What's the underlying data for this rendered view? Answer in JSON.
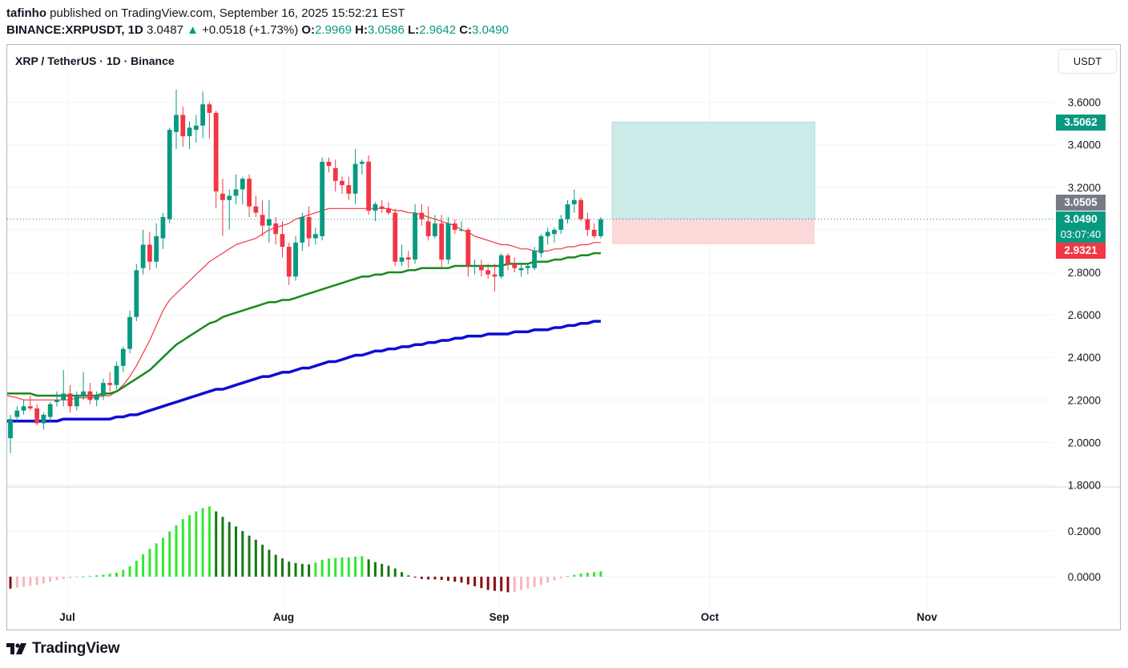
{
  "header": {
    "author": "tafinho",
    "published": "published on TradingView.com, September 16, 2025 15:52:21 EST",
    "symbol": "BINANCE:XRPUSDT, 1D",
    "last": "3.0487",
    "arrow": "▲",
    "change": "+0.0518 (+1.73%)",
    "o_label": "O:",
    "o": "2.9969",
    "h_label": "H:",
    "h": "3.0586",
    "l_label": "L:",
    "l": "2.9642",
    "c_label": "C:",
    "c": "3.0490"
  },
  "legend": "XRP / TetherUS · 1D · Binance",
  "currency_button": "USDT",
  "price_labels": {
    "target": "3.5062",
    "entry": "3.0505",
    "last": "3.0490",
    "countdown": "03:07:40",
    "stop": "2.9321"
  },
  "brand": "TradingView",
  "colors": {
    "up": "#089981",
    "down": "#f23645",
    "ema_fast": "#f23645",
    "ema_mid": "#1b8a1b",
    "ema_slow": "#0d0dd6",
    "target_zone": "#cbeae8",
    "stop_zone": "#fdd8d8",
    "hist_green_bright": "#32e832",
    "hist_green_dark": "#137a13",
    "hist_red_light": "#f7b7bb",
    "hist_red_dark": "#880e0e"
  },
  "chart_data": [
    {
      "type": "candlestick",
      "title": "XRP / TetherUS · 1D · Binance",
      "ylim": [
        1.8,
        3.8
      ],
      "y_ticks": [
        "3.6000",
        "3.4000",
        "3.2000",
        "3.0000",
        "2.8000",
        "2.6000",
        "2.4000",
        "2.2000",
        "2.0000",
        "1.8000"
      ],
      "x_ticks": [
        "Jul",
        "Aug",
        "Sep",
        "Oct",
        "Nov"
      ],
      "grid": true,
      "candles": [
        [
          2.02,
          2.13,
          1.95,
          2.11
        ],
        [
          2.12,
          2.17,
          2.1,
          2.15
        ],
        [
          2.15,
          2.2,
          2.13,
          2.17
        ],
        [
          2.17,
          2.22,
          2.15,
          2.16
        ],
        [
          2.16,
          2.18,
          2.08,
          2.09
        ],
        [
          2.09,
          2.14,
          2.06,
          2.13
        ],
        [
          2.12,
          2.19,
          2.1,
          2.18
        ],
        [
          2.19,
          2.24,
          2.17,
          2.2
        ],
        [
          2.2,
          2.34,
          2.17,
          2.23
        ],
        [
          2.23,
          2.27,
          2.14,
          2.17
        ],
        [
          2.17,
          2.24,
          2.15,
          2.22
        ],
        [
          2.22,
          2.33,
          2.2,
          2.24
        ],
        [
          2.24,
          2.28,
          2.18,
          2.2
        ],
        [
          2.2,
          2.24,
          2.17,
          2.22
        ],
        [
          2.22,
          2.3,
          2.2,
          2.28
        ],
        [
          2.28,
          2.33,
          2.24,
          2.27
        ],
        [
          2.27,
          2.38,
          2.25,
          2.36
        ],
        [
          2.36,
          2.45,
          2.33,
          2.44
        ],
        [
          2.44,
          2.62,
          2.42,
          2.59
        ],
        [
          2.59,
          2.84,
          2.57,
          2.81
        ],
        [
          2.82,
          3.0,
          2.79,
          2.93
        ],
        [
          2.93,
          2.99,
          2.81,
          2.85
        ],
        [
          2.85,
          3.03,
          2.82,
          2.97
        ],
        [
          2.96,
          3.08,
          2.91,
          3.06
        ],
        [
          3.05,
          3.48,
          3.03,
          3.47
        ],
        [
          3.46,
          3.66,
          3.38,
          3.54
        ],
        [
          3.54,
          3.58,
          3.39,
          3.44
        ],
        [
          3.44,
          3.51,
          3.38,
          3.48
        ],
        [
          3.47,
          3.54,
          3.41,
          3.49
        ],
        [
          3.49,
          3.65,
          3.43,
          3.59
        ],
        [
          3.59,
          3.6,
          3.43,
          3.55
        ],
        [
          3.55,
          3.56,
          3.1,
          3.18
        ],
        [
          3.17,
          3.24,
          2.97,
          3.14
        ],
        [
          3.14,
          3.19,
          3.0,
          3.16
        ],
        [
          3.16,
          3.26,
          3.12,
          3.19
        ],
        [
          3.19,
          3.25,
          3.12,
          3.24
        ],
        [
          3.24,
          3.26,
          3.06,
          3.11
        ],
        [
          3.11,
          3.16,
          3.06,
          3.08
        ],
        [
          3.07,
          3.14,
          2.97,
          3.02
        ],
        [
          3.02,
          3.14,
          2.94,
          3.05
        ],
        [
          3.03,
          3.06,
          2.93,
          2.98
        ],
        [
          2.98,
          3.04,
          2.87,
          2.92
        ],
        [
          2.92,
          2.94,
          2.74,
          2.78
        ],
        [
          2.78,
          2.97,
          2.76,
          2.94
        ],
        [
          2.94,
          3.08,
          2.9,
          3.06
        ],
        [
          3.06,
          3.11,
          2.92,
          2.96
        ],
        [
          2.96,
          3.01,
          2.93,
          2.98
        ],
        [
          2.97,
          3.34,
          2.95,
          3.32
        ],
        [
          3.32,
          3.34,
          3.27,
          3.3
        ],
        [
          3.29,
          3.33,
          3.18,
          3.23
        ],
        [
          3.23,
          3.25,
          3.17,
          3.21
        ],
        [
          3.21,
          3.25,
          3.14,
          3.17
        ],
        [
          3.17,
          3.38,
          3.12,
          3.31
        ],
        [
          3.31,
          3.33,
          3.26,
          3.32
        ],
        [
          3.32,
          3.35,
          3.07,
          3.09
        ],
        [
          3.09,
          3.13,
          3.04,
          3.12
        ],
        [
          3.11,
          3.14,
          3.08,
          3.1
        ],
        [
          3.1,
          3.13,
          3.07,
          3.08
        ],
        [
          3.08,
          3.1,
          2.83,
          2.85
        ],
        [
          2.85,
          2.93,
          2.83,
          2.87
        ],
        [
          2.87,
          2.9,
          2.82,
          2.86
        ],
        [
          2.86,
          3.12,
          2.84,
          3.08
        ],
        [
          3.08,
          3.12,
          3.02,
          3.05
        ],
        [
          3.04,
          3.11,
          2.95,
          2.97
        ],
        [
          2.97,
          3.07,
          2.96,
          3.03
        ],
        [
          3.03,
          3.07,
          2.82,
          2.86
        ],
        [
          2.86,
          3.06,
          2.84,
          3.03
        ],
        [
          3.03,
          3.05,
          2.98,
          3.0
        ],
        [
          3.0,
          3.04,
          2.99,
          3.0
        ],
        [
          3.0,
          3.01,
          2.78,
          2.83
        ],
        [
          2.83,
          2.86,
          2.79,
          2.83
        ],
        [
          2.83,
          2.86,
          2.78,
          2.81
        ],
        [
          2.81,
          2.84,
          2.77,
          2.79
        ],
        [
          2.79,
          2.84,
          2.71,
          2.78
        ],
        [
          2.78,
          2.89,
          2.77,
          2.88
        ],
        [
          2.88,
          2.89,
          2.81,
          2.84
        ],
        [
          2.84,
          2.87,
          2.8,
          2.82
        ],
        [
          2.81,
          2.84,
          2.78,
          2.82
        ],
        [
          2.82,
          2.84,
          2.79,
          2.83
        ],
        [
          2.82,
          2.92,
          2.81,
          2.9
        ],
        [
          2.89,
          2.98,
          2.87,
          2.97
        ],
        [
          2.97,
          3.01,
          2.93,
          2.99
        ],
        [
          2.98,
          3.01,
          2.94,
          3.0
        ],
        [
          3.0,
          3.07,
          2.98,
          3.05
        ],
        [
          3.05,
          3.14,
          3.03,
          3.12
        ],
        [
          3.12,
          3.19,
          3.08,
          3.14
        ],
        [
          3.14,
          3.15,
          3.04,
          3.05
        ],
        [
          3.05,
          3.08,
          2.97,
          3.0
        ],
        [
          3.0,
          3.03,
          2.96,
          2.97
        ],
        [
          2.97,
          3.06,
          2.96,
          3.05
        ]
      ],
      "series": [
        {
          "name": "",
          "color": "#f23645",
          "values": [
            2.22,
            2.21,
            2.2,
            2.2,
            2.2,
            2.2,
            2.2,
            2.2,
            2.2,
            2.2,
            2.21,
            2.21,
            2.21,
            2.21,
            2.22,
            2.22,
            2.24,
            2.27,
            2.31,
            2.36,
            2.42,
            2.48,
            2.55,
            2.62,
            2.67,
            2.7,
            2.73,
            2.76,
            2.79,
            2.82,
            2.85,
            2.87,
            2.89,
            2.91,
            2.93,
            2.94,
            2.95,
            2.96,
            2.98,
            3.0,
            3.01,
            3.02,
            3.03,
            3.05,
            3.06,
            3.07,
            3.08,
            3.09,
            3.1,
            3.1,
            3.1,
            3.1,
            3.1,
            3.1,
            3.1,
            3.1,
            3.1,
            3.1,
            3.09,
            3.09,
            3.08,
            3.08,
            3.07,
            3.06,
            3.05,
            3.04,
            3.03,
            3.02,
            3.0,
            2.99,
            2.97,
            2.96,
            2.95,
            2.94,
            2.93,
            2.93,
            2.92,
            2.91,
            2.91,
            2.9,
            2.9,
            2.9,
            2.91,
            2.91,
            2.92,
            2.92,
            2.93,
            2.93,
            2.94,
            2.94
          ]
        },
        {
          "name": "",
          "color": "#1b8a1b",
          "values": [
            2.23,
            2.23,
            2.23,
            2.23,
            2.22,
            2.22,
            2.22,
            2.22,
            2.22,
            2.22,
            2.22,
            2.22,
            2.22,
            2.22,
            2.23,
            2.23,
            2.24,
            2.26,
            2.28,
            2.3,
            2.32,
            2.34,
            2.37,
            2.4,
            2.43,
            2.46,
            2.48,
            2.5,
            2.52,
            2.54,
            2.56,
            2.57,
            2.59,
            2.6,
            2.61,
            2.62,
            2.63,
            2.64,
            2.65,
            2.66,
            2.66,
            2.67,
            2.67,
            2.68,
            2.69,
            2.7,
            2.71,
            2.72,
            2.73,
            2.74,
            2.75,
            2.76,
            2.77,
            2.78,
            2.78,
            2.79,
            2.79,
            2.8,
            2.8,
            2.8,
            2.81,
            2.81,
            2.82,
            2.82,
            2.82,
            2.82,
            2.82,
            2.83,
            2.83,
            2.83,
            2.83,
            2.83,
            2.83,
            2.83,
            2.83,
            2.84,
            2.84,
            2.84,
            2.84,
            2.85,
            2.85,
            2.85,
            2.86,
            2.86,
            2.87,
            2.87,
            2.88,
            2.88,
            2.89,
            2.89
          ]
        },
        {
          "name": "",
          "color": "#0d0dd6",
          "values": [
            2.1,
            2.1,
            2.1,
            2.1,
            2.1,
            2.1,
            2.1,
            2.1,
            2.11,
            2.11,
            2.11,
            2.11,
            2.11,
            2.11,
            2.11,
            2.11,
            2.12,
            2.12,
            2.13,
            2.13,
            2.14,
            2.15,
            2.16,
            2.17,
            2.18,
            2.19,
            2.2,
            2.21,
            2.22,
            2.23,
            2.24,
            2.25,
            2.25,
            2.26,
            2.27,
            2.28,
            2.29,
            2.3,
            2.31,
            2.31,
            2.32,
            2.33,
            2.33,
            2.34,
            2.35,
            2.35,
            2.36,
            2.37,
            2.38,
            2.38,
            2.39,
            2.4,
            2.41,
            2.41,
            2.42,
            2.43,
            2.43,
            2.44,
            2.44,
            2.45,
            2.45,
            2.46,
            2.46,
            2.47,
            2.47,
            2.48,
            2.48,
            2.49,
            2.49,
            2.5,
            2.5,
            2.5,
            2.51,
            2.51,
            2.51,
            2.51,
            2.52,
            2.52,
            2.52,
            2.53,
            2.53,
            2.53,
            2.54,
            2.54,
            2.55,
            2.55,
            2.56,
            2.56,
            2.57,
            2.57
          ]
        }
      ],
      "position": {
        "entry": 3.0505,
        "target": 3.5062,
        "stop": 2.9321
      }
    },
    {
      "type": "histogram",
      "ylim": [
        -0.08,
        0.3
      ],
      "y_ticks": [
        "0.2000",
        "0.0000"
      ],
      "values": [
        -0.052,
        -0.048,
        -0.044,
        -0.04,
        -0.036,
        -0.03,
        -0.022,
        -0.016,
        -0.01,
        -0.006,
        -0.003,
        0.001,
        0.003,
        0.006,
        0.009,
        0.013,
        0.018,
        0.03,
        0.046,
        0.07,
        0.098,
        0.122,
        0.146,
        0.17,
        0.198,
        0.225,
        0.252,
        0.27,
        0.286,
        0.3,
        0.308,
        0.286,
        0.262,
        0.24,
        0.22,
        0.2,
        0.18,
        0.162,
        0.14,
        0.118,
        0.096,
        0.08,
        0.066,
        0.06,
        0.056,
        0.054,
        0.062,
        0.074,
        0.08,
        0.082,
        0.084,
        0.084,
        0.088,
        0.09,
        0.076,
        0.064,
        0.056,
        0.048,
        0.036,
        0.02,
        0.006,
        -0.004,
        -0.01,
        -0.012,
        -0.012,
        -0.014,
        -0.018,
        -0.022,
        -0.026,
        -0.034,
        -0.042,
        -0.05,
        -0.058,
        -0.062,
        -0.064,
        -0.068,
        -0.066,
        -0.058,
        -0.052,
        -0.046,
        -0.036,
        -0.026,
        -0.016,
        -0.008,
        0.002,
        0.008,
        0.014,
        0.018,
        0.02,
        0.024
      ]
    }
  ]
}
